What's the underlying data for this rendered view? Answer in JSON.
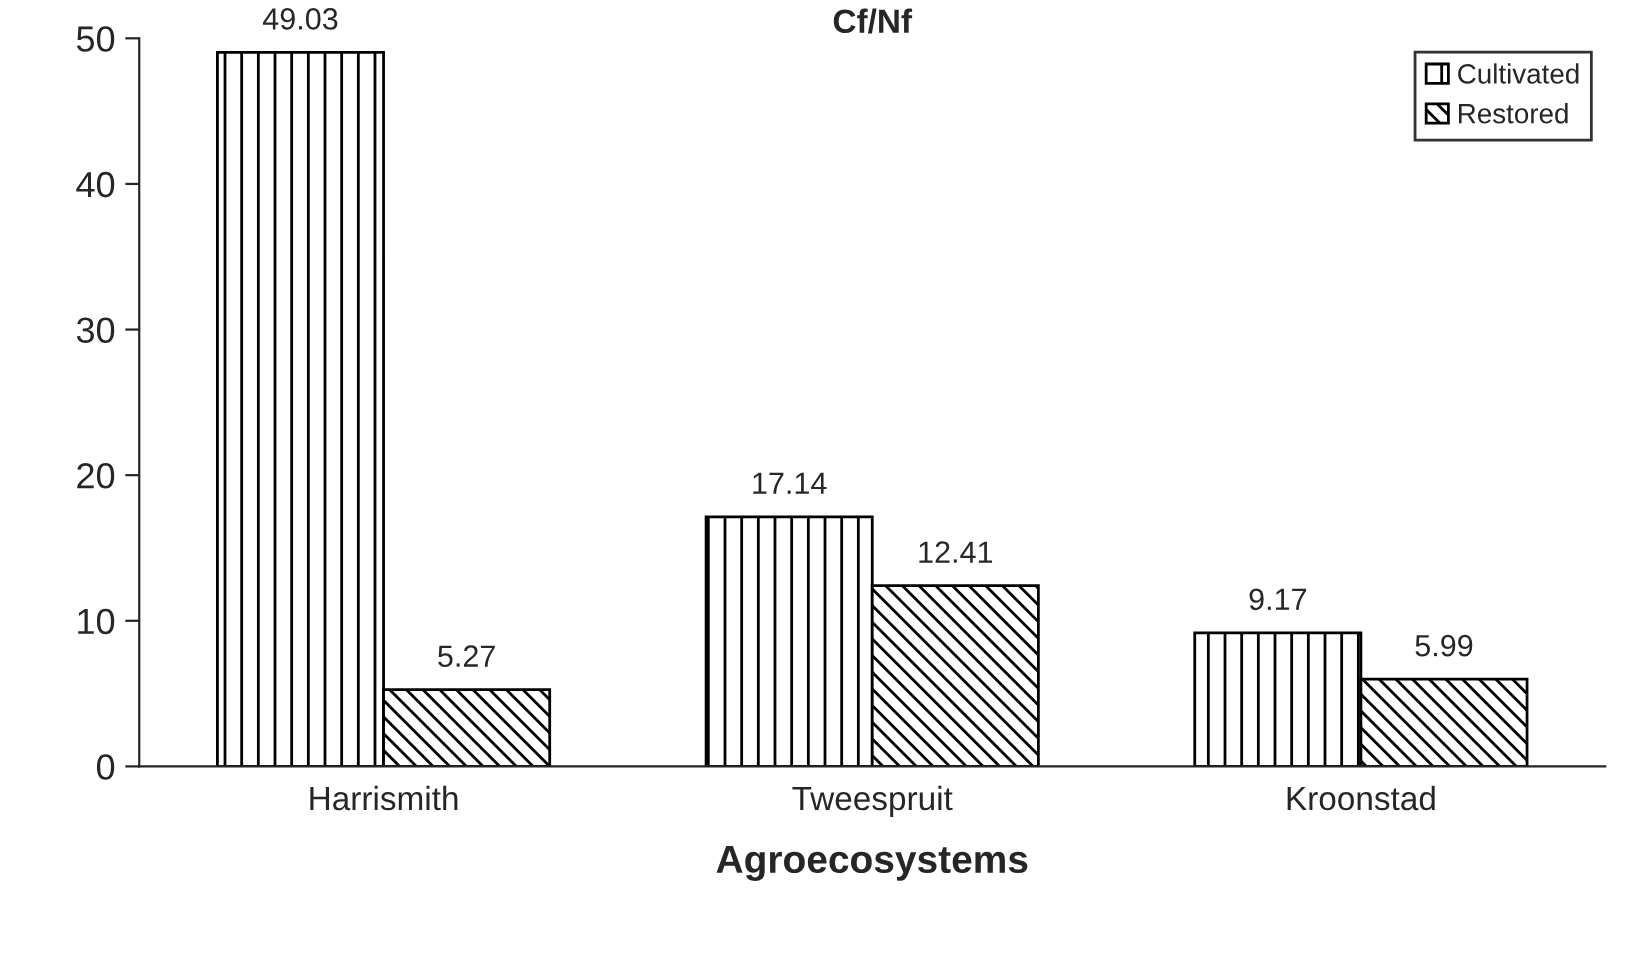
{
  "chart_data": {
    "type": "bar",
    "title": "Cf/Nf",
    "xlabel": "Agroecosystems",
    "categories": [
      "Harrismith",
      "Tweespruit",
      "Kroonstad"
    ],
    "series": [
      {
        "name": "Cultivated",
        "color": "#000000",
        "values": [
          49.03,
          17.14,
          9.17
        ]
      },
      {
        "name": "Restored",
        "color": "#000000",
        "values": [
          5.27,
          12.41,
          5.99
        ]
      }
    ],
    "ylim": [
      0,
      50
    ],
    "yticks": [
      0,
      10,
      20,
      30,
      40,
      50
    ],
    "data_labels": true,
    "legend": "top right",
    "grid": false
  }
}
